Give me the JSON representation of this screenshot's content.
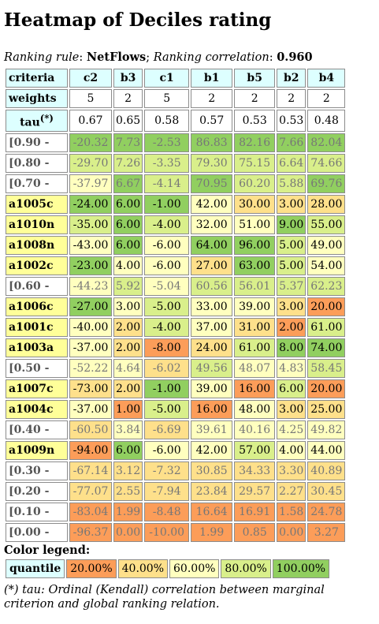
{
  "page": {
    "title": "Heatmap of Deciles rating",
    "ranking_rule_label": "Ranking rule",
    "ranking_rule_value": "NetFlows",
    "ranking_corr_label": "Ranking correlation",
    "ranking_corr_value": "0.960"
  },
  "chart_data": {
    "type": "heatmap",
    "title": "Heatmap of Deciles rating",
    "header_label": "criteria",
    "weights_label": "weights",
    "tau_label": "tau",
    "tau_sup": "(*)",
    "criteria": [
      "c2",
      "b3",
      "c1",
      "b1",
      "b5",
      "b2",
      "b4"
    ],
    "weights": [
      "5",
      "2",
      "5",
      "2",
      "2",
      "2",
      "2"
    ],
    "tau": [
      "0.67",
      "0.65",
      "0.58",
      "0.57",
      "0.53",
      "0.53",
      "0.48"
    ],
    "rows": [
      {
        "label": "[0.90 -",
        "kind": "quantile",
        "values": [
          "-20.32",
          "7.73",
          "-2.53",
          "86.83",
          "82.16",
          "7.66",
          "82.04"
        ],
        "levels": [
          4,
          4,
          4,
          4,
          4,
          4,
          4
        ]
      },
      {
        "label": "[0.80 -",
        "kind": "quantile",
        "values": [
          "-29.70",
          "7.26",
          "-3.35",
          "79.30",
          "75.15",
          "6.64",
          "74.66"
        ],
        "levels": [
          3,
          3,
          3,
          3,
          3,
          3,
          3
        ]
      },
      {
        "label": "[0.70 -",
        "kind": "quantile",
        "values": [
          "-37.97",
          "6.67",
          "-4.14",
          "70.95",
          "60.20",
          "5.88",
          "69.76"
        ],
        "levels": [
          2,
          4,
          3,
          4,
          3,
          3,
          4
        ]
      },
      {
        "label": "a1005c",
        "kind": "alternative",
        "values": [
          "-24.00",
          "6.00",
          "-1.00",
          "42.00",
          "30.00",
          "3.00",
          "28.00"
        ],
        "levels": [
          4,
          4,
          4,
          2,
          1,
          1,
          1
        ]
      },
      {
        "label": "a1010n",
        "kind": "alternative",
        "values": [
          "-35.00",
          "6.00",
          "-4.00",
          "32.00",
          "51.00",
          "9.00",
          "55.00"
        ],
        "levels": [
          3,
          4,
          3,
          2,
          2,
          4,
          3
        ]
      },
      {
        "label": "a1008n",
        "kind": "alternative",
        "values": [
          "-43.00",
          "6.00",
          "-6.00",
          "64.00",
          "96.00",
          "5.00",
          "49.00"
        ],
        "levels": [
          2,
          4,
          2,
          4,
          4,
          3,
          2
        ]
      },
      {
        "label": "a1002c",
        "kind": "alternative",
        "values": [
          "-23.00",
          "4.00",
          "-6.00",
          "27.00",
          "63.00",
          "5.00",
          "54.00"
        ],
        "levels": [
          4,
          2,
          2,
          1,
          4,
          3,
          2
        ]
      },
      {
        "label": "[0.60 -",
        "kind": "quantile",
        "values": [
          "-44.23",
          "5.92",
          "-5.04",
          "60.56",
          "56.01",
          "5.37",
          "62.23"
        ],
        "levels": [
          2,
          3,
          2,
          3,
          3,
          3,
          3
        ]
      },
      {
        "label": "a1006c",
        "kind": "alternative",
        "values": [
          "-27.00",
          "3.00",
          "-5.00",
          "33.00",
          "39.00",
          "3.00",
          "20.00"
        ],
        "levels": [
          4,
          2,
          3,
          2,
          2,
          1,
          0
        ]
      },
      {
        "label": "a1001c",
        "kind": "alternative",
        "values": [
          "-40.00",
          "2.00",
          "-4.00",
          "37.00",
          "31.00",
          "2.00",
          "61.00"
        ],
        "levels": [
          2,
          1,
          3,
          2,
          1,
          0,
          3
        ]
      },
      {
        "label": "a1003a",
        "kind": "alternative",
        "values": [
          "-37.00",
          "2.00",
          "-8.00",
          "24.00",
          "61.00",
          "8.00",
          "74.00"
        ],
        "levels": [
          2,
          1,
          0,
          1,
          3,
          4,
          4
        ]
      },
      {
        "label": "[0.50 -",
        "kind": "quantile",
        "values": [
          "-52.22",
          "4.64",
          "-6.02",
          "49.56",
          "48.07",
          "4.83",
          "58.45"
        ],
        "levels": [
          2,
          2,
          1,
          3,
          2,
          2,
          3
        ]
      },
      {
        "label": "a1007c",
        "kind": "alternative",
        "values": [
          "-73.00",
          "2.00",
          "-1.00",
          "39.00",
          "16.00",
          "6.00",
          "20.00"
        ],
        "levels": [
          1,
          1,
          4,
          2,
          0,
          3,
          0
        ]
      },
      {
        "label": "a1004c",
        "kind": "alternative",
        "values": [
          "-37.00",
          "1.00",
          "-5.00",
          "16.00",
          "48.00",
          "3.00",
          "25.00"
        ],
        "levels": [
          2,
          0,
          3,
          0,
          2,
          1,
          1
        ]
      },
      {
        "label": "[0.40 -",
        "kind": "quantile",
        "values": [
          "-60.50",
          "3.84",
          "-6.69",
          "39.61",
          "40.16",
          "4.25",
          "49.82"
        ],
        "levels": [
          1,
          2,
          1,
          2,
          2,
          2,
          2
        ]
      },
      {
        "label": "a1009n",
        "kind": "alternative",
        "values": [
          "-94.00",
          "6.00",
          "-6.00",
          "42.00",
          "57.00",
          "4.00",
          "44.00"
        ],
        "levels": [
          0,
          4,
          2,
          2,
          3,
          2,
          2
        ]
      },
      {
        "label": "[0.30 -",
        "kind": "quantile",
        "values": [
          "-67.14",
          "3.12",
          "-7.32",
          "30.85",
          "34.33",
          "3.30",
          "40.89"
        ],
        "levels": [
          1,
          1,
          1,
          1,
          1,
          1,
          1
        ]
      },
      {
        "label": "[0.20 -",
        "kind": "quantile",
        "values": [
          "-77.07",
          "2.55",
          "-7.94",
          "23.84",
          "29.57",
          "2.27",
          "30.45"
        ],
        "levels": [
          1,
          1,
          1,
          1,
          1,
          1,
          1
        ]
      },
      {
        "label": "[0.10 -",
        "kind": "quantile",
        "values": [
          "-83.04",
          "1.99",
          "-8.48",
          "16.64",
          "16.91",
          "1.58",
          "24.78"
        ],
        "levels": [
          0,
          0,
          0,
          0,
          0,
          0,
          0
        ]
      },
      {
        "label": "[0.00 -",
        "kind": "quantile",
        "values": [
          "-96.37",
          "0.00",
          "-10.00",
          "1.99",
          "0.85",
          "0.00",
          "3.27"
        ],
        "levels": [
          0,
          0,
          0,
          0,
          0,
          0,
          0
        ]
      }
    ],
    "legend": {
      "title": "Color legend:",
      "label": "quantile",
      "items": [
        "20.00%",
        "40.00%",
        "60.00%",
        "80.00%",
        "100.00%"
      ],
      "colors": [
        "#fc9d59",
        "#fee08b",
        "#ffffbf",
        "#d9ef8b",
        "#91cf60"
      ]
    },
    "footnote": "(*) tau: Ordinal (Kendall) correlation between marginal criterion and global ranking relation."
  }
}
